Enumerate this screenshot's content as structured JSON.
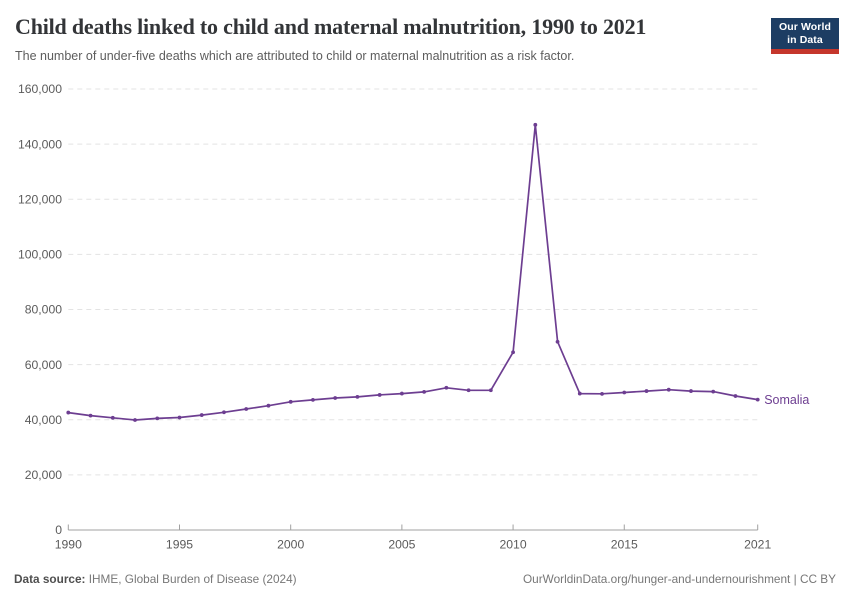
{
  "header": {
    "title": "Child deaths linked to child and maternal malnutrition, 1990 to 2021",
    "subtitle": "The number of under-five deaths which are attributed to child or maternal malnutrition as a risk factor.",
    "logo": {
      "line1": "Our World",
      "line2": "in Data"
    }
  },
  "footer": {
    "source_label": "Data source:",
    "source_value": "IHME, Global Burden of Disease (2024)",
    "link": "OurWorldinData.org/hunger-and-undernourishment | CC BY"
  },
  "colors": {
    "series": "#6d3e91",
    "grid": "#e3e3e3",
    "axis": "#a1a1a1",
    "tick_text": "#5b5b5b",
    "logo_bg": "#1d3d63",
    "logo_stripe": "#c5362c"
  },
  "chart_data": {
    "type": "line",
    "title": "Child deaths linked to child and maternal malnutrition, 1990 to 2021",
    "xlabel": "",
    "ylabel": "",
    "ylim": [
      0,
      160000
    ],
    "grid": true,
    "legend_position": "end-of-line",
    "x": [
      1990,
      1991,
      1992,
      1993,
      1994,
      1995,
      1996,
      1997,
      1998,
      1999,
      2000,
      2001,
      2002,
      2003,
      2004,
      2005,
      2006,
      2007,
      2008,
      2009,
      2010,
      2011,
      2012,
      2013,
      2014,
      2015,
      2016,
      2017,
      2018,
      2019,
      2020,
      2021
    ],
    "series": [
      {
        "name": "Somalia",
        "values": [
          42600,
          41500,
          40700,
          39900,
          40500,
          40800,
          41700,
          42700,
          43900,
          45100,
          46500,
          47200,
          47900,
          48300,
          49000,
          49500,
          50100,
          51600,
          50700,
          50700,
          64500,
          147000,
          68300,
          49500,
          49400,
          49900,
          50400,
          50900,
          50400,
          50200,
          48600,
          47300
        ]
      }
    ],
    "ytick_values": [
      0,
      20000,
      40000,
      60000,
      80000,
      100000,
      120000,
      140000,
      160000
    ],
    "ytick_labels": [
      "0",
      "20,000",
      "40,000",
      "60,000",
      "80,000",
      "100,000",
      "120,000",
      "140,000",
      "160,000"
    ],
    "xtick_values": [
      1990,
      1995,
      2000,
      2005,
      2010,
      2015,
      2021
    ],
    "xtick_labels": [
      "1990",
      "1995",
      "2000",
      "2005",
      "2010",
      "2015",
      "2021"
    ]
  }
}
